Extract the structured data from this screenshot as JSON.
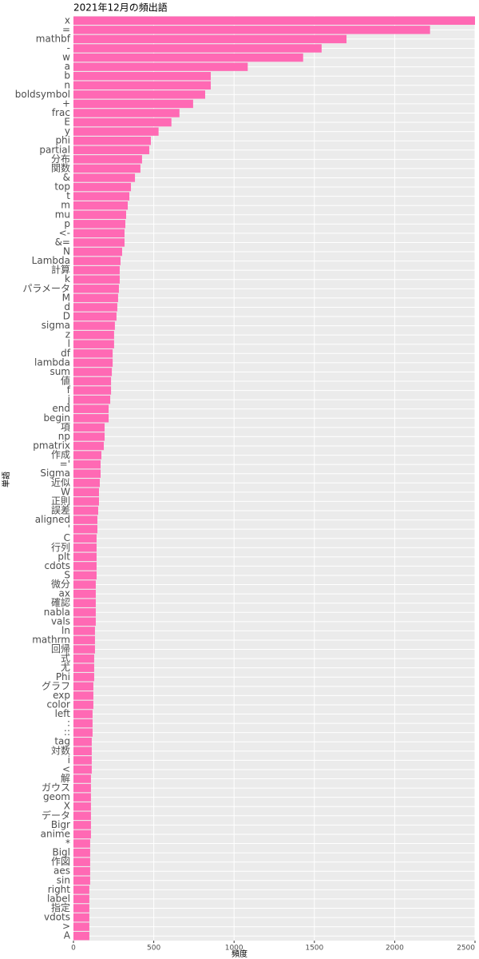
{
  "chart_data": {
    "type": "barh",
    "title": "2021年12月の頻出語",
    "xlabel": "頻度",
    "ylabel": "単語",
    "categories": [
      "x",
      "=",
      "mathbf",
      "-",
      "w",
      "a",
      "b",
      "n",
      "boldsymbol",
      "+",
      "frac",
      "E",
      "y",
      "phi",
      "partial",
      "分布",
      "関数",
      "&",
      "top",
      "t",
      "m",
      "mu",
      "p",
      "<-",
      "&=",
      "N",
      "Lambda",
      "計算",
      "k",
      "パラメータ",
      "M",
      "d",
      "D",
      "sigma",
      "z",
      "l",
      "df",
      "lambda",
      "sum",
      "値",
      "f",
      "j",
      "end",
      "begin",
      "項",
      "np",
      "pmatrix",
      "作成",
      "='",
      "Sigma",
      "近似",
      "W",
      "正則",
      "誤差",
      "aligned",
      "'",
      "C",
      "行列",
      "plt",
      "cdots",
      "S",
      "微分",
      "ax",
      "確認",
      "nabla",
      "vals",
      "ln",
      "mathrm",
      "回帰",
      "式",
      "尤",
      "Phi",
      "グラフ",
      "exp",
      "color",
      "left",
      ":",
      "::",
      "tag",
      "対数",
      "i",
      "<",
      "解",
      "ガウス",
      "geom",
      "X",
      "データ",
      "Bigr",
      "anime",
      "*",
      "Bigl",
      "作図",
      "aes",
      "sin",
      "right",
      "label",
      "指定",
      "vdots",
      ">",
      "A"
    ],
    "values": [
      2500,
      2220,
      1700,
      1545,
      1430,
      1085,
      855,
      855,
      820,
      745,
      660,
      610,
      530,
      482,
      472,
      427,
      417,
      383,
      358,
      348,
      338,
      328,
      323,
      318,
      318,
      303,
      293,
      288,
      288,
      283,
      278,
      273,
      268,
      258,
      253,
      253,
      244,
      244,
      239,
      234,
      234,
      229,
      219,
      219,
      194,
      194,
      189,
      174,
      169,
      169,
      164,
      159,
      159,
      154,
      149,
      149,
      144,
      144,
      144,
      144,
      144,
      139,
      139,
      139,
      139,
      139,
      134,
      134,
      134,
      129,
      129,
      129,
      124,
      124,
      124,
      119,
      119,
      119,
      114,
      114,
      114,
      114,
      109,
      109,
      109,
      109,
      109,
      109,
      109,
      104,
      104,
      104,
      104,
      104,
      99,
      99,
      99,
      99,
      99,
      99
    ],
    "color": "#ff69b4",
    "xlim": [
      0,
      2500
    ],
    "xticks": [
      0,
      500,
      1000,
      1500,
      2000,
      2500
    ],
    "grid": true
  }
}
